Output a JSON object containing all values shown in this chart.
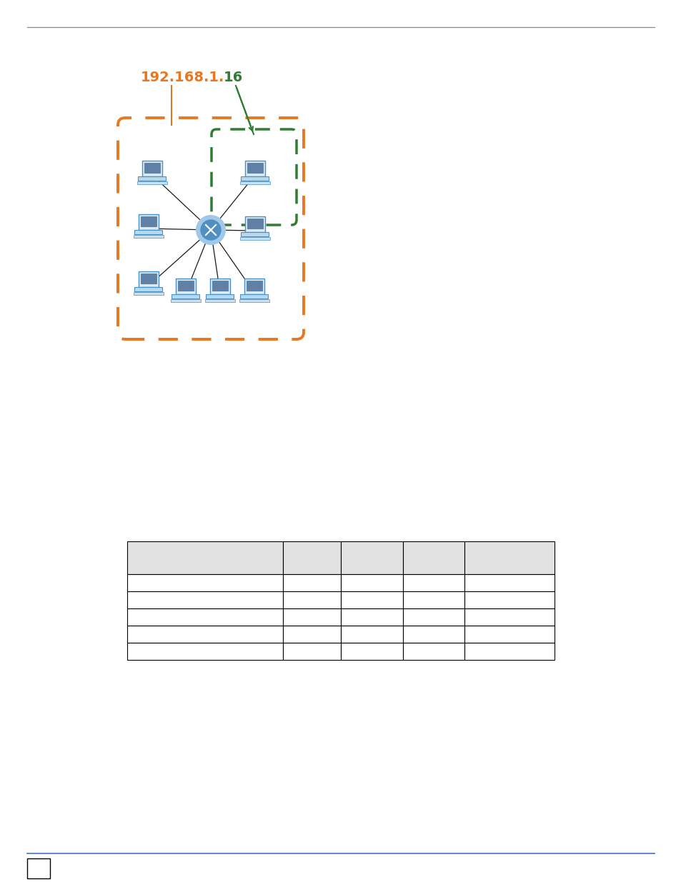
{
  "page_bg": "#ffffff",
  "top_line_color": "#888888",
  "bottom_line_color": "#4472c4",
  "ip_color1": "#e87722",
  "ip_color2": "#2e7d32",
  "table_cols": [
    0.0,
    0.365,
    0.5,
    0.645,
    0.79,
    1.0
  ],
  "table_rows": 6,
  "header_color": "#e2e2e2",
  "cell_color": "#ffffff"
}
